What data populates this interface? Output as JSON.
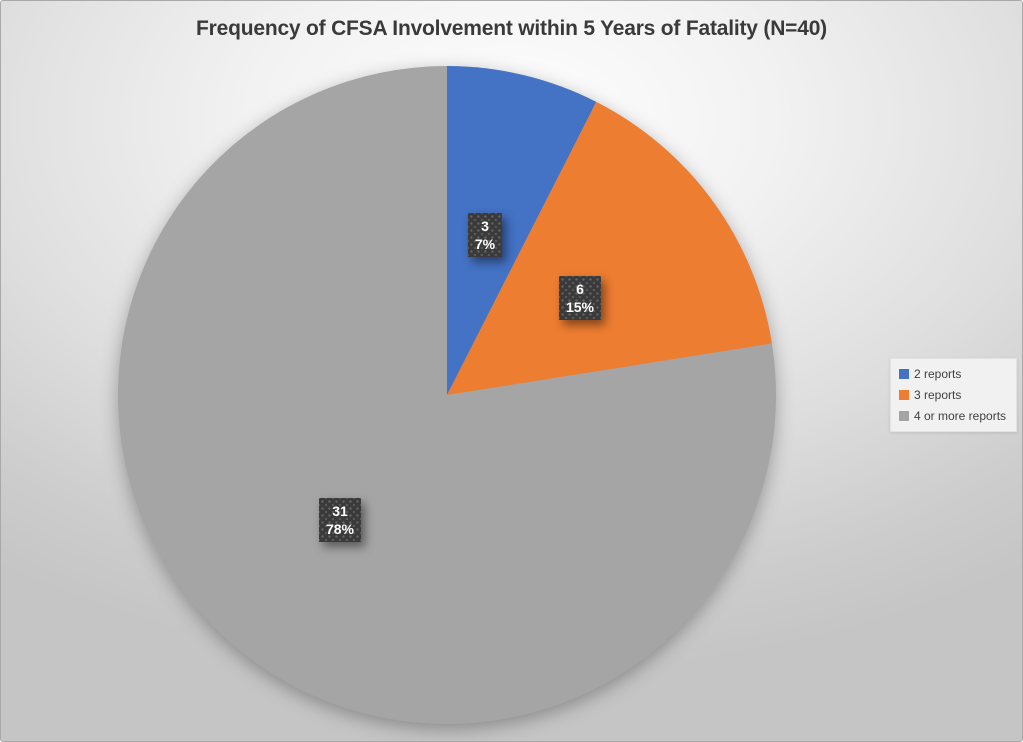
{
  "chart_data": {
    "type": "pie",
    "title": "Frequency of CFSA Involvement within 5 Years of Fatality (N=40)",
    "total_n": 40,
    "categories": [
      "2 reports",
      "3 reports",
      "4 or more reports"
    ],
    "values": [
      3,
      6,
      31
    ],
    "percentages": [
      7,
      15,
      78
    ],
    "colors": [
      "#4472C4",
      "#ED7D31",
      "#A5A5A5"
    ],
    "start_angle_deg": 0,
    "direction": "clockwise",
    "legend_position": "right",
    "data_labels": [
      {
        "value": "3",
        "percent": "7%"
      },
      {
        "value": "6",
        "percent": "15%"
      },
      {
        "value": "31",
        "percent": "78%"
      }
    ]
  },
  "legend": {
    "items": [
      {
        "label": "2 reports",
        "color": "#4472C4"
      },
      {
        "label": "3 reports",
        "color": "#ED7D31"
      },
      {
        "label": "4 or more reports",
        "color": "#A5A5A5"
      }
    ]
  }
}
